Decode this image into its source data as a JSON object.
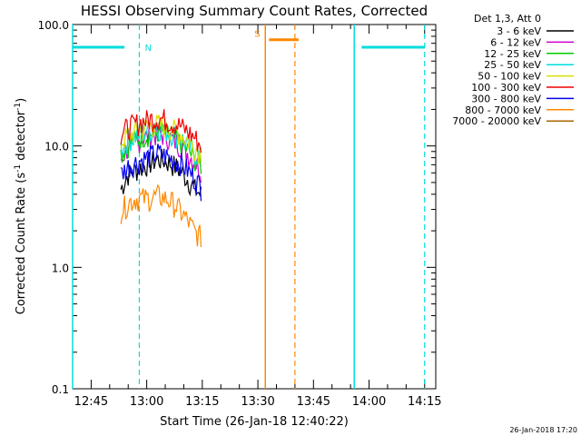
{
  "chart_data": {
    "type": "line",
    "title": "HESSI Observing Summary Count Rates, Corrected",
    "ylabel": "Corrected Count Rate (s⁻¹ detector⁻¹)",
    "xlabel": "Start Time (26-Jan-18 12:40:22)",
    "y_scale": "log",
    "ylim": [
      0.1,
      100.0
    ],
    "xlim": [
      "12:40",
      "14:18"
    ],
    "x_ticks": [
      "12:45",
      "13:00",
      "13:15",
      "13:30",
      "13:45",
      "14:00",
      "14:15"
    ],
    "y_ticks": [
      "0.1",
      "1.0",
      "10.0",
      "100.0"
    ],
    "legend_title": "Det 1,3, Att 0",
    "legend_position": "outside-right",
    "footer": "26-Jan-2018 17:20",
    "series": [
      {
        "name": "3 - 6 keV",
        "color": "#000000",
        "x": [
          "12:53",
          "12:55",
          "12:57",
          "12:59",
          "13:01",
          "13:03",
          "13:05",
          "13:07",
          "13:09",
          "13:11",
          "13:13",
          "13:15"
        ],
        "y": [
          4.5,
          6.0,
          6.5,
          7.0,
          7.5,
          8.0,
          7.8,
          7.2,
          6.5,
          5.5,
          4.5,
          4.0
        ]
      },
      {
        "name": "6 - 12 keV",
        "color": "#cc00cc",
        "x": [
          "12:53",
          "12:55",
          "12:57",
          "12:59",
          "13:01",
          "13:03",
          "13:05",
          "13:07",
          "13:09",
          "13:11",
          "13:13",
          "13:15"
        ],
        "y": [
          8.0,
          10.0,
          11.0,
          12.0,
          12.5,
          13.0,
          12.5,
          11.5,
          10.5,
          9.0,
          7.5,
          6.5
        ]
      },
      {
        "name": "12 - 25 keV",
        "color": "#00cc00",
        "x": [
          "12:53",
          "12:55",
          "12:57",
          "12:59",
          "13:01",
          "13:03",
          "13:05",
          "13:07",
          "13:09",
          "13:11",
          "13:13",
          "13:15"
        ],
        "y": [
          9.0,
          10.5,
          11.5,
          12.5,
          13.0,
          13.5,
          13.0,
          12.0,
          11.0,
          9.5,
          8.0,
          7.0
        ]
      },
      {
        "name": "25 - 50 keV",
        "color": "#00dddd",
        "x": [
          "12:53",
          "12:55",
          "12:57",
          "12:59",
          "13:01",
          "13:03",
          "13:05",
          "13:07",
          "13:09",
          "13:11",
          "13:13",
          "13:15"
        ],
        "y": [
          10.0,
          11.5,
          12.5,
          13.5,
          14.0,
          14.5,
          14.0,
          13.0,
          12.0,
          10.5,
          9.0,
          8.0
        ]
      },
      {
        "name": "50 - 100 keV",
        "color": "#dddd00",
        "x": [
          "12:53",
          "12:55",
          "12:57",
          "12:59",
          "13:01",
          "13:03",
          "13:05",
          "13:07",
          "13:09",
          "13:11",
          "13:13",
          "13:15"
        ],
        "y": [
          11.0,
          12.5,
          13.5,
          14.5,
          15.0,
          15.5,
          15.0,
          14.0,
          13.0,
          11.5,
          10.0,
          9.0
        ]
      },
      {
        "name": "100 - 300 keV",
        "color": "#ee0000",
        "x": [
          "12:53",
          "12:55",
          "12:57",
          "12:59",
          "13:01",
          "13:03",
          "13:05",
          "13:07",
          "13:09",
          "13:11",
          "13:13",
          "13:15"
        ],
        "y": [
          13.0,
          14.5,
          15.5,
          16.5,
          17.0,
          17.5,
          17.0,
          16.0,
          15.0,
          13.5,
          12.0,
          10.0
        ]
      },
      {
        "name": "300 - 800 keV",
        "color": "#0000ee",
        "x": [
          "12:53",
          "12:55",
          "12:57",
          "12:59",
          "13:01",
          "13:03",
          "13:05",
          "13:07",
          "13:09",
          "13:11",
          "13:13",
          "13:15"
        ],
        "y": [
          6.0,
          7.0,
          7.5,
          8.0,
          8.5,
          9.0,
          8.5,
          8.0,
          7.5,
          6.5,
          5.5,
          4.5
        ]
      },
      {
        "name": "800 - 7000 keV",
        "color": "#ff8800",
        "x": [
          "12:53",
          "12:55",
          "12:57",
          "12:59",
          "13:01",
          "13:03",
          "13:05",
          "13:07",
          "13:09",
          "13:11",
          "13:13",
          "13:15"
        ],
        "y": [
          3.0,
          3.5,
          3.8,
          3.8,
          3.8,
          4.0,
          3.8,
          3.5,
          3.0,
          2.5,
          2.0,
          1.8
        ]
      },
      {
        "name": "7000 - 20000 keV",
        "color": "#aa6600",
        "x": [],
        "y": []
      }
    ],
    "annotations": [
      {
        "label": "N",
        "color": "#00dddd",
        "kind": "night",
        "bars": [
          [
            "12:40",
            "12:54"
          ],
          [
            "13:58",
            "14:15"
          ]
        ],
        "level": 65.0,
        "boundaries": [
          "12:58",
          "14:15"
        ],
        "edges": [
          "12:40",
          "13:56"
        ]
      },
      {
        "label": "S",
        "color": "#ff8800",
        "kind": "saa",
        "bars": [
          [
            "13:33",
            "13:41"
          ]
        ],
        "level": 75.0,
        "boundaries": [
          "13:40"
        ],
        "edges": [
          "13:32"
        ]
      }
    ]
  }
}
